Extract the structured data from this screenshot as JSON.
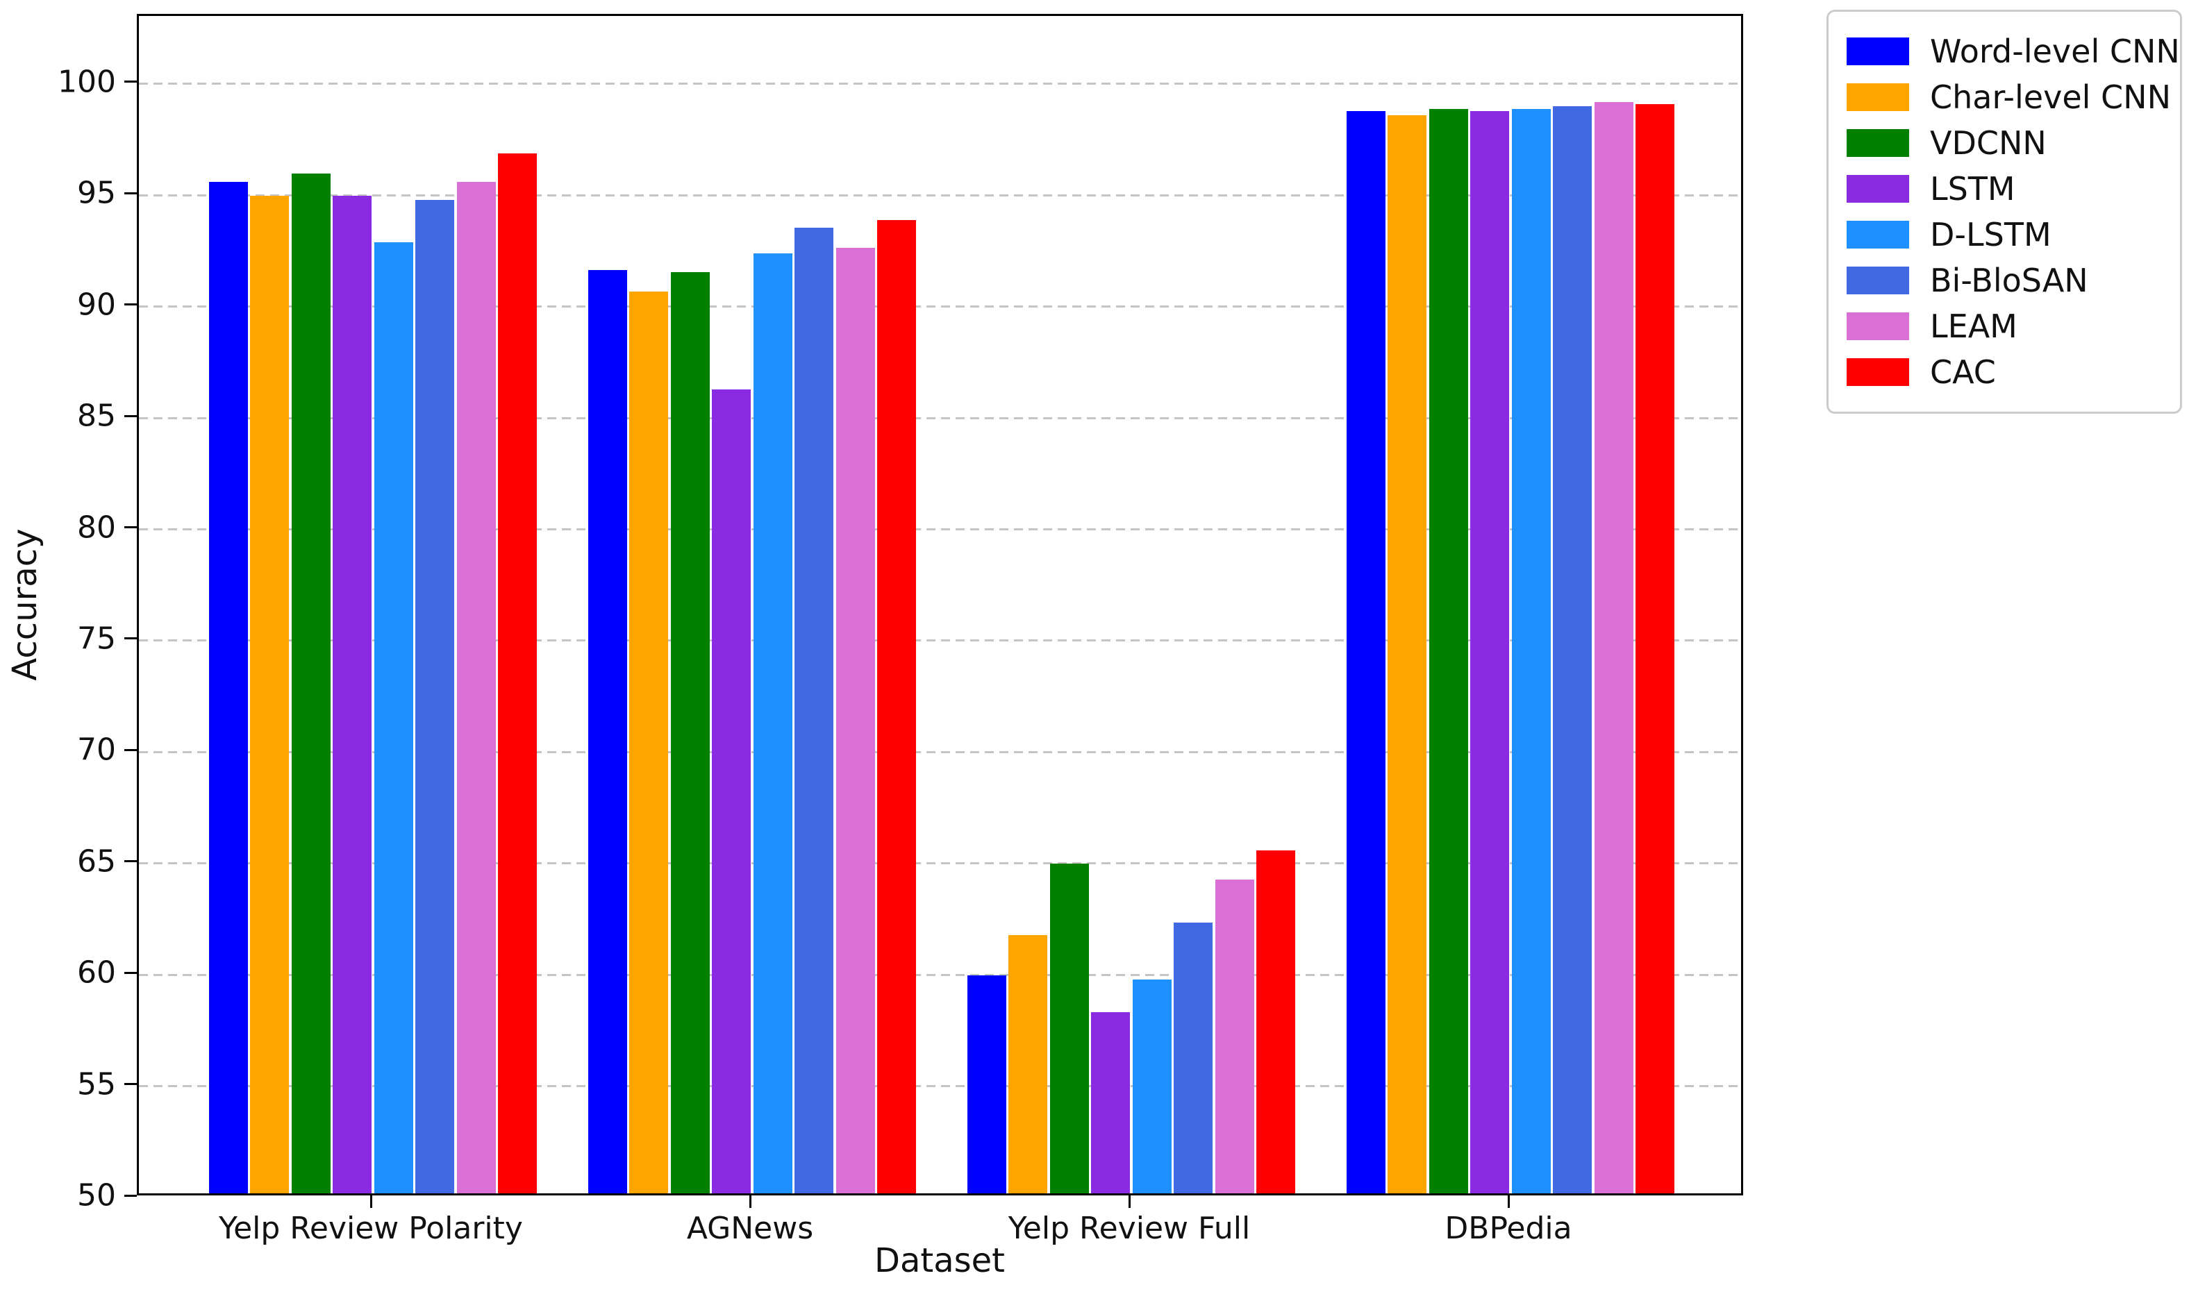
{
  "chart_data": {
    "type": "bar",
    "title": "",
    "xlabel": "Dataset",
    "ylabel": "Accuracy",
    "ylim": [
      50,
      103.05
    ],
    "yticks": [
      50,
      55,
      60,
      65,
      70,
      75,
      80,
      85,
      90,
      95,
      100
    ],
    "grid": "horizontal dashed gridlines on",
    "legend_position": "outside upper right",
    "categories": [
      "Yelp Review Polarity",
      "AGNews",
      "Yelp Review Full",
      "DBPedia"
    ],
    "series": [
      {
        "name": "Word-level CNN",
        "color": "#0000FF",
        "values": [
          95.4,
          91.45,
          59.8,
          98.6
        ]
      },
      {
        "name": "Char-level CNN",
        "color": "#FFA500",
        "values": [
          94.8,
          90.5,
          61.6,
          98.4
        ]
      },
      {
        "name": "VDCNN",
        "color": "#008000",
        "values": [
          95.8,
          91.35,
          64.8,
          98.7
        ]
      },
      {
        "name": "LSTM",
        "color": "#8A2BE2",
        "values": [
          94.8,
          86.1,
          58.15,
          98.6
        ]
      },
      {
        "name": "D-LSTM",
        "color": "#1E90FF",
        "values": [
          92.7,
          92.2,
          59.6,
          98.7
        ]
      },
      {
        "name": "Bi-BloSAN",
        "color": "#4169E1",
        "values": [
          94.6,
          93.35,
          62.15,
          98.8
        ]
      },
      {
        "name": "LEAM",
        "color": "#DA70D6",
        "values": [
          95.4,
          92.45,
          64.1,
          99.0
        ]
      },
      {
        "name": "CAC",
        "color": "#FF0000",
        "values": [
          96.7,
          93.7,
          65.4,
          98.9
        ]
      }
    ]
  }
}
